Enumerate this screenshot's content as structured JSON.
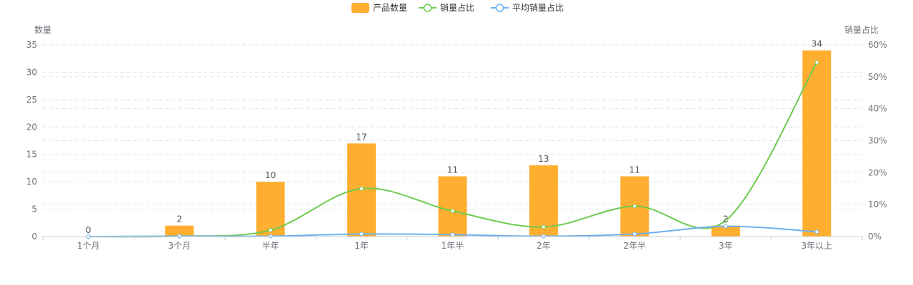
{
  "chart_data": {
    "type": "bar",
    "categories": [
      "1个月",
      "3个月",
      "半年",
      "1年",
      "1年半",
      "2年",
      "2年半",
      "3年",
      "3年以上"
    ],
    "left_axis": {
      "name": "数量",
      "min": 0,
      "max": 35,
      "ticks": [
        "0",
        "5",
        "10",
        "15",
        "20",
        "25",
        "30",
        "35"
      ]
    },
    "right_axis": {
      "name": "销量占比",
      "min": 0,
      "max": 60,
      "ticks": [
        "0%",
        "10%",
        "20%",
        "30%",
        "40%",
        "50%",
        "60%"
      ]
    },
    "grid": "dashed",
    "legend_position": "top-center",
    "series": [
      {
        "name": "产品数量",
        "type": "bar",
        "axis": "left",
        "color": "#ffae2f",
        "values": [
          0,
          2,
          10,
          17,
          11,
          13,
          11,
          2,
          34
        ],
        "labels": [
          "0",
          "2",
          "10",
          "17",
          "11",
          "13",
          "11",
          "2",
          "34"
        ]
      },
      {
        "name": "销量占比",
        "type": "line",
        "axis": "right",
        "smooth": true,
        "color": "#6ecb4f",
        "values": [
          0,
          0.1,
          2,
          15,
          8,
          3,
          9.5,
          5,
          54.5
        ]
      },
      {
        "name": "平均销量占比",
        "type": "line",
        "axis": "right",
        "smooth": true,
        "color": "#6cb1ef",
        "values": [
          0,
          0.1,
          0.1,
          0.8,
          0.6,
          0.1,
          0.8,
          3.2,
          1.5
        ]
      }
    ]
  }
}
